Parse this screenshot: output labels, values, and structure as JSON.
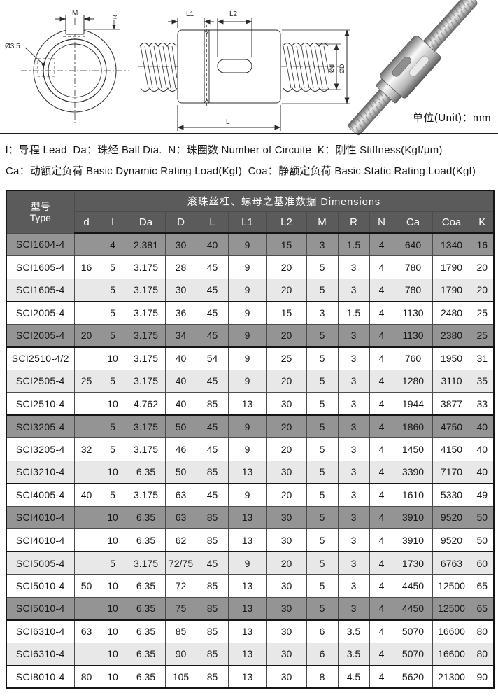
{
  "unit_label": "单位(Unit)：mm",
  "legend": {
    "line1": "l：导程 Lead  Da：珠经 Ball Dia.  N：珠圈数 Number of Circuite  K：刚性 Stiffness(Kgf/μm)",
    "line2": "Ca：动额定负荷 Basic Dynamic Rating Load(Kgf)  Coa：静额定负荷 Basic Static Rating Load(Kgf)"
  },
  "diagrams": {
    "section_view": {
      "bore_dia": "Ø3.5",
      "keyway_width": "M",
      "keyway_depth": "R"
    },
    "side_view": {
      "l1": "L1",
      "l2": "L2",
      "l": "L",
      "screw_dia": "Ød",
      "nut_dia": "ØD"
    }
  },
  "colors": {
    "header_bg": "#5b5b5b",
    "dark_row_bg": "#949494",
    "light_row_bg": "#e8e8e8",
    "line": "#2b2b2b",
    "border": "#141414"
  },
  "table": {
    "header": {
      "model_zh": "型号",
      "model_en": "Type",
      "dims_title": "滚珠丝杠、螺母之基准数据 Dimensions"
    },
    "columns": [
      "d",
      "l",
      "Da",
      "D",
      "L",
      "L1",
      "L2",
      "M",
      "R",
      "N",
      "Ca",
      "Coa",
      "K"
    ],
    "rows": [
      {
        "shade": "dark",
        "group_end": false,
        "cells": [
          "SCI1604-4",
          "",
          "4",
          "2.381",
          "30",
          "40",
          "9",
          "15",
          "3",
          "1.5",
          "4",
          "640",
          "1340",
          "16"
        ]
      },
      {
        "shade": "white",
        "group_end": false,
        "cells": [
          "SCI1605-4",
          "16",
          "5",
          "3.175",
          "28",
          "45",
          "9",
          "20",
          "5",
          "3",
          "4",
          "780",
          "1790",
          "20"
        ]
      },
      {
        "shade": "light",
        "group_end": true,
        "cells": [
          "SCI1605-4",
          "",
          "5",
          "3.175",
          "30",
          "45",
          "9",
          "20",
          "5",
          "3",
          "4",
          "780",
          "1790",
          "20"
        ]
      },
      {
        "shade": "white",
        "group_end": false,
        "cells": [
          "SCI2005-4",
          "",
          "5",
          "3.175",
          "36",
          "45",
          "9",
          "15",
          "3",
          "1.5",
          "4",
          "1130",
          "2480",
          "25"
        ]
      },
      {
        "shade": "dark",
        "group_end": true,
        "cells": [
          "SCI2005-4",
          "20",
          "5",
          "3.175",
          "34",
          "45",
          "9",
          "20",
          "5",
          "3",
          "4",
          "1130",
          "2380",
          "25"
        ]
      },
      {
        "shade": "white",
        "group_end": false,
        "cells": [
          "SCI2510-4/2",
          "",
          "10",
          "3.175",
          "40",
          "54",
          "9",
          "25",
          "5",
          "3",
          "4",
          "760",
          "1950",
          "31"
        ]
      },
      {
        "shade": "light",
        "group_end": false,
        "cells": [
          "SCI2505-4",
          "25",
          "5",
          "3.175",
          "40",
          "45",
          "9",
          "20",
          "5",
          "3",
          "4",
          "1280",
          "3110",
          "35"
        ]
      },
      {
        "shade": "white",
        "group_end": true,
        "cells": [
          "SCI2510-4",
          "",
          "10",
          "4.762",
          "40",
          "85",
          "13",
          "30",
          "5",
          "3",
          "4",
          "1944",
          "3877",
          "33"
        ]
      },
      {
        "shade": "dark",
        "group_end": false,
        "cells": [
          "SCI3205-4",
          "",
          "5",
          "3.175",
          "50",
          "45",
          "9",
          "20",
          "5",
          "3",
          "4",
          "1860",
          "4750",
          "40"
        ]
      },
      {
        "shade": "white",
        "group_end": false,
        "cells": [
          "SCI3205-4",
          "32",
          "5",
          "3.175",
          "46",
          "45",
          "9",
          "20",
          "5",
          "3",
          "4",
          "1450",
          "4150",
          "40"
        ]
      },
      {
        "shade": "light",
        "group_end": true,
        "cells": [
          "SCI3210-4",
          "",
          "10",
          "6.35",
          "50",
          "85",
          "13",
          "30",
          "5",
          "3",
          "4",
          "3390",
          "7170",
          "40"
        ]
      },
      {
        "shade": "white",
        "group_end": false,
        "cells": [
          "SCI4005-4",
          "40",
          "5",
          "3.175",
          "63",
          "45",
          "9",
          "20",
          "5",
          "3",
          "4",
          "1610",
          "5330",
          "49"
        ]
      },
      {
        "shade": "dark",
        "group_end": false,
        "cells": [
          "SCI4010-4",
          "",
          "10",
          "6.35",
          "63",
          "85",
          "13",
          "30",
          "5",
          "3",
          "4",
          "3910",
          "9520",
          "50"
        ]
      },
      {
        "shade": "white",
        "group_end": true,
        "cells": [
          "SCI4010-4",
          "",
          "10",
          "6.35",
          "62",
          "85",
          "13",
          "30",
          "5",
          "3",
          "4",
          "3910",
          "9520",
          "50"
        ]
      },
      {
        "shade": "light",
        "group_end": false,
        "cells": [
          "SCI5005-4",
          "",
          "5",
          "3.175",
          "72/75",
          "45",
          "9",
          "20",
          "5",
          "3",
          "4",
          "1730",
          "6763",
          "60"
        ]
      },
      {
        "shade": "white",
        "group_end": false,
        "cells": [
          "SCI5010-4",
          "50",
          "10",
          "6.35",
          "72",
          "85",
          "13",
          "30",
          "5",
          "3",
          "4",
          "4450",
          "12500",
          "65"
        ]
      },
      {
        "shade": "dark",
        "group_end": true,
        "cells": [
          "SCI5010-4",
          "",
          "10",
          "6.35",
          "75",
          "85",
          "13",
          "30",
          "5",
          "3",
          "4",
          "4450",
          "12500",
          "65"
        ]
      },
      {
        "shade": "white",
        "group_end": false,
        "cells": [
          "SCI6310-4",
          "63",
          "10",
          "6.35",
          "85",
          "85",
          "13",
          "30",
          "6",
          "3.5",
          "4",
          "5070",
          "16600",
          "80"
        ]
      },
      {
        "shade": "light",
        "group_end": true,
        "cells": [
          "SCI6310-4",
          "",
          "10",
          "6.35",
          "90",
          "85",
          "13",
          "30",
          "6",
          "3.5",
          "4",
          "5070",
          "16600",
          "80"
        ]
      },
      {
        "shade": "white",
        "group_end": false,
        "cells": [
          "SCI8010-4",
          "80",
          "10",
          "6.35",
          "105",
          "85",
          "13",
          "30",
          "8",
          "4.5",
          "4",
          "5620",
          "21300",
          "90"
        ]
      }
    ]
  }
}
